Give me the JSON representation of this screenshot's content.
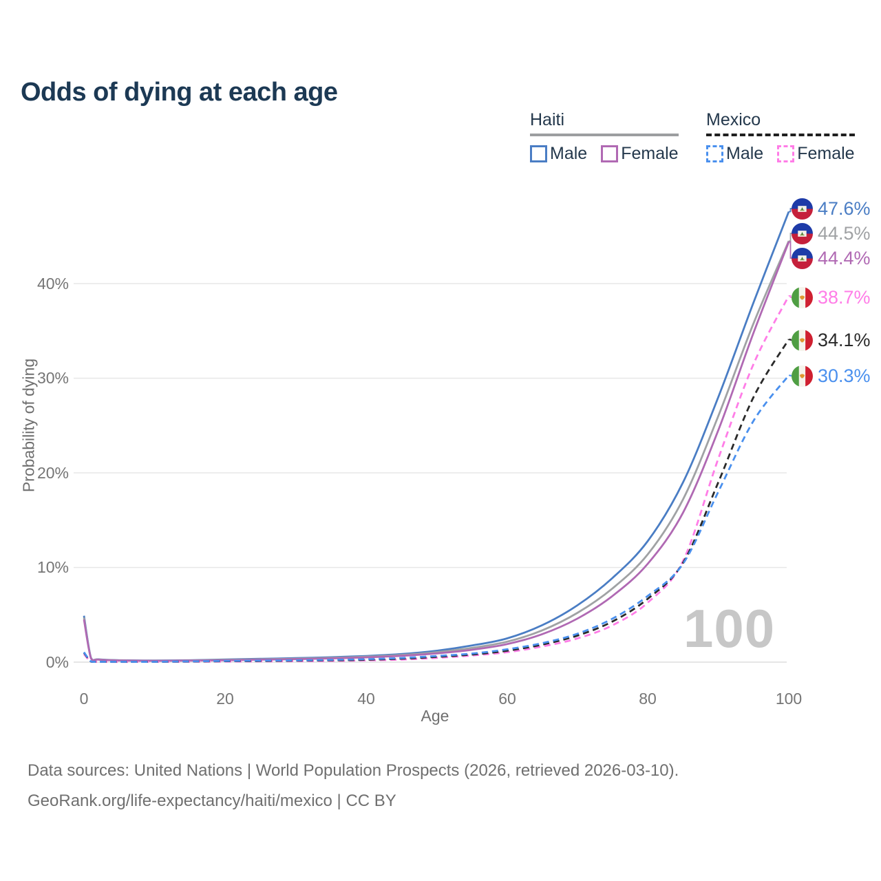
{
  "title": "Odds of dying at each age",
  "legend": {
    "groups": [
      {
        "name": "Haiti",
        "line_style": "solid",
        "line_color": "#9c9ea0",
        "items": [
          {
            "label": "Male",
            "color": "#4a7dc4"
          },
          {
            "label": "Female",
            "color": "#b069b3"
          }
        ]
      },
      {
        "name": "Mexico",
        "line_style": "dashed",
        "line_color": "#1f1f1f",
        "items": [
          {
            "label": "Male",
            "color": "#4a90ee"
          },
          {
            "label": "Female",
            "color": "#ff7de7"
          }
        ]
      }
    ]
  },
  "chart_data": {
    "type": "line",
    "title": "Odds of dying at each age",
    "xlabel": "Age",
    "ylabel": "Probability of dying",
    "xlim": [
      0,
      100
    ],
    "ylim": [
      0,
      40
    ],
    "x_ticks": [
      "0",
      "20",
      "40",
      "60",
      "80",
      "100"
    ],
    "y_ticks": [
      "0%",
      "10%",
      "20%",
      "30%",
      "40%"
    ],
    "grid": "horizontal",
    "legend_position": "top-right",
    "hover_age_indicator": "100",
    "x": [
      0,
      1,
      2,
      5,
      10,
      15,
      20,
      25,
      30,
      35,
      40,
      45,
      50,
      55,
      60,
      65,
      70,
      75,
      80,
      85,
      90,
      95,
      100
    ],
    "unit": "percent",
    "series": [
      {
        "name": "Haiti Male",
        "country": "Haiti",
        "color": "#4a7dc4",
        "dash": "solid",
        "end_label": "47.6%",
        "values": [
          4.9,
          0.45,
          0.3,
          0.2,
          0.17,
          0.2,
          0.28,
          0.35,
          0.42,
          0.52,
          0.65,
          0.85,
          1.2,
          1.75,
          2.5,
          3.9,
          6.0,
          8.9,
          12.8,
          19.0,
          28.0,
          38.0,
          47.6
        ]
      },
      {
        "name": "Haiti",
        "country": "Haiti",
        "color": "#a0a2a4",
        "dash": "solid",
        "end_label": "44.5%",
        "values": [
          4.7,
          0.42,
          0.28,
          0.19,
          0.15,
          0.18,
          0.24,
          0.3,
          0.36,
          0.45,
          0.57,
          0.75,
          1.05,
          1.5,
          2.15,
          3.35,
          5.2,
          7.8,
          11.4,
          17.2,
          26.0,
          35.8,
          44.5
        ]
      },
      {
        "name": "Haiti Female",
        "country": "Haiti",
        "color": "#b069b3",
        "dash": "solid",
        "end_label": "44.4%",
        "values": [
          4.5,
          0.4,
          0.26,
          0.17,
          0.14,
          0.16,
          0.2,
          0.26,
          0.31,
          0.39,
          0.5,
          0.66,
          0.92,
          1.3,
          1.9,
          2.95,
          4.6,
          7.0,
          10.4,
          15.8,
          24.5,
          34.8,
          44.4
        ]
      },
      {
        "name": "Mexico Female",
        "country": "Mexico",
        "color": "#ff7de7",
        "dash": "dashed",
        "end_label": "38.7%",
        "values": [
          0.85,
          0.05,
          0.03,
          0.025,
          0.03,
          0.045,
          0.06,
          0.08,
          0.1,
          0.13,
          0.18,
          0.27,
          0.45,
          0.7,
          1.05,
          1.65,
          2.5,
          3.9,
          6.3,
          10.7,
          21.5,
          31.5,
          38.7
        ]
      },
      {
        "name": "Mexico",
        "country": "Mexico",
        "color": "#2a2a2a",
        "dash": "dashed",
        "end_label": "34.1%",
        "values": [
          1.0,
          0.06,
          0.035,
          0.03,
          0.035,
          0.06,
          0.1,
          0.12,
          0.15,
          0.19,
          0.25,
          0.36,
          0.55,
          0.8,
          1.2,
          1.85,
          2.8,
          4.3,
          6.7,
          10.5,
          19.0,
          28.0,
          34.1
        ]
      },
      {
        "name": "Mexico Male",
        "country": "Mexico",
        "color": "#4a90ee",
        "dash": "dashed",
        "end_label": "30.3%",
        "values": [
          1.05,
          0.07,
          0.04,
          0.035,
          0.04,
          0.08,
          0.13,
          0.16,
          0.19,
          0.24,
          0.31,
          0.44,
          0.65,
          0.9,
          1.35,
          2.0,
          3.0,
          4.6,
          7.0,
          10.4,
          18.0,
          25.5,
          30.3
        ]
      }
    ]
  },
  "footer": {
    "line1": "Data sources: United Nations | World Population Prospects (2026, retrieved 2026-03-10).",
    "line2": "GeoRank.org/life-expectancy/haiti/mexico | CC BY"
  },
  "colors": {
    "title": "#1c3954",
    "axis_text": "#757575",
    "gridline": "#e7e7e7",
    "watermark": "#c7c7c7"
  }
}
